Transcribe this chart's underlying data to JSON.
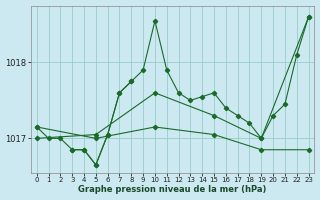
{
  "title": "Graphe pression niveau de la mer (hPa)",
  "bg_color": "#cce8f0",
  "grid_color": "#99cccc",
  "line_color": "#1a6b2a",
  "xlim": [
    -0.5,
    23.5
  ],
  "ylim": [
    1016.55,
    1018.75
  ],
  "yticks": [
    1017,
    1018
  ],
  "xticks": [
    0,
    1,
    2,
    3,
    4,
    5,
    6,
    7,
    8,
    9,
    10,
    11,
    12,
    13,
    14,
    15,
    16,
    17,
    18,
    19,
    20,
    21,
    22,
    23
  ],
  "series": [
    {
      "x": [
        0,
        1,
        2,
        3,
        4,
        5,
        6,
        7,
        8,
        9,
        10,
        11,
        12,
        13,
        14,
        15,
        16,
        17,
        18,
        19,
        20,
        21,
        22,
        23
      ],
      "y": [
        1017.15,
        1017.0,
        1017.0,
        1016.85,
        1016.85,
        1016.65,
        1017.05,
        1017.6,
        1017.75,
        1017.9,
        1018.55,
        1017.9,
        1017.6,
        1017.5,
        1017.55,
        1017.6,
        1017.4,
        1017.3,
        1017.2,
        1017.0,
        1017.3,
        1017.45,
        1018.1,
        1018.6
      ]
    },
    {
      "x": [
        0,
        5,
        10,
        15,
        19,
        23
      ],
      "y": [
        1017.0,
        1017.05,
        1017.6,
        1017.3,
        1017.0,
        1018.6
      ]
    },
    {
      "x": [
        0,
        5,
        10,
        15,
        19,
        23
      ],
      "y": [
        1017.15,
        1017.0,
        1017.15,
        1017.05,
        1016.85,
        1016.85
      ]
    },
    {
      "x": [
        3,
        4,
        5,
        6,
        7,
        8
      ],
      "y": [
        1016.85,
        1016.85,
        1016.65,
        1017.05,
        1017.6,
        1017.75
      ]
    }
  ]
}
